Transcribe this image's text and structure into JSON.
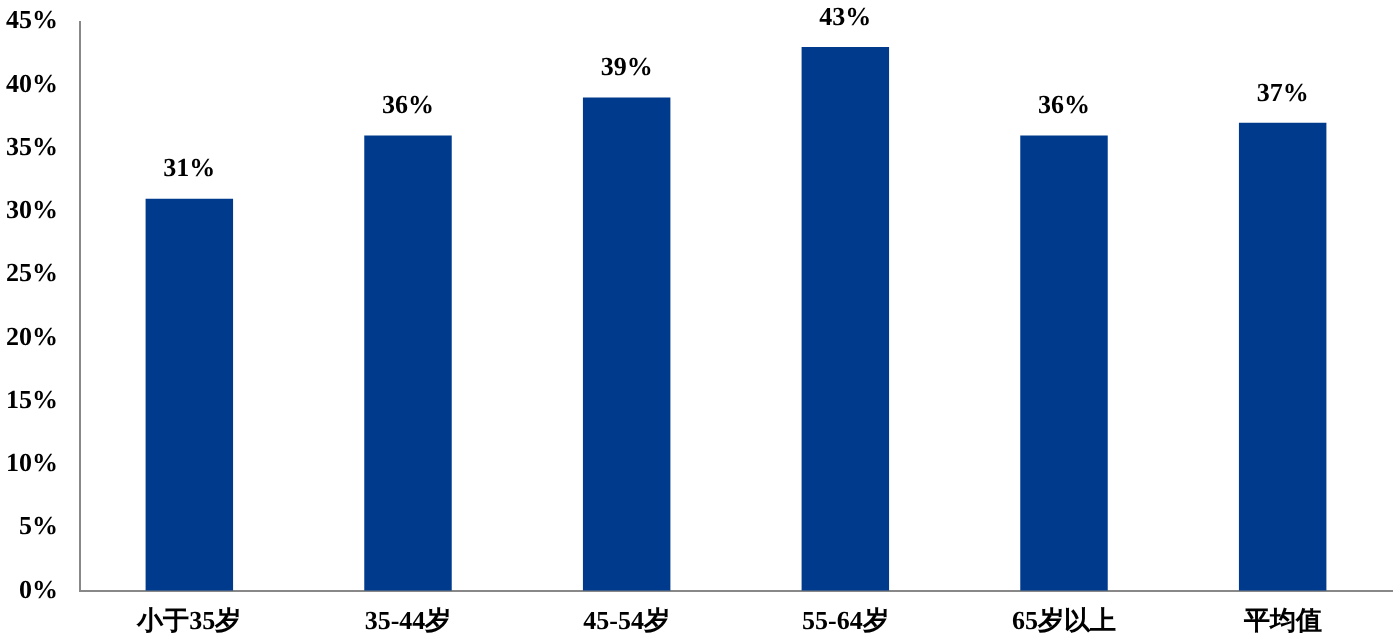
{
  "chart_data": {
    "type": "bar",
    "categories": [
      "小于35岁",
      "35-44岁",
      "45-54岁",
      "55-64岁",
      "65岁以上",
      "平均值"
    ],
    "values": [
      31,
      36,
      39,
      43,
      36,
      37
    ],
    "color": "#003a8c",
    "ylim": [
      0,
      45
    ],
    "yticks": [
      {
        "value": 0,
        "label": "0%"
      },
      {
        "value": 5,
        "label": "5%"
      },
      {
        "value": 10,
        "label": "10%"
      },
      {
        "value": 15,
        "label": "15%"
      },
      {
        "value": 20,
        "label": "20%"
      },
      {
        "value": 25,
        "label": "25%"
      },
      {
        "value": 30,
        "label": "30%"
      },
      {
        "value": 35,
        "label": "35%"
      },
      {
        "value": 40,
        "label": "40%"
      },
      {
        "value": 45,
        "label": "45%"
      }
    ],
    "value_labels": [
      "31%",
      "36%",
      "39%",
      "43%",
      "36%",
      "37%"
    ],
    "grid": false,
    "legend": false
  }
}
